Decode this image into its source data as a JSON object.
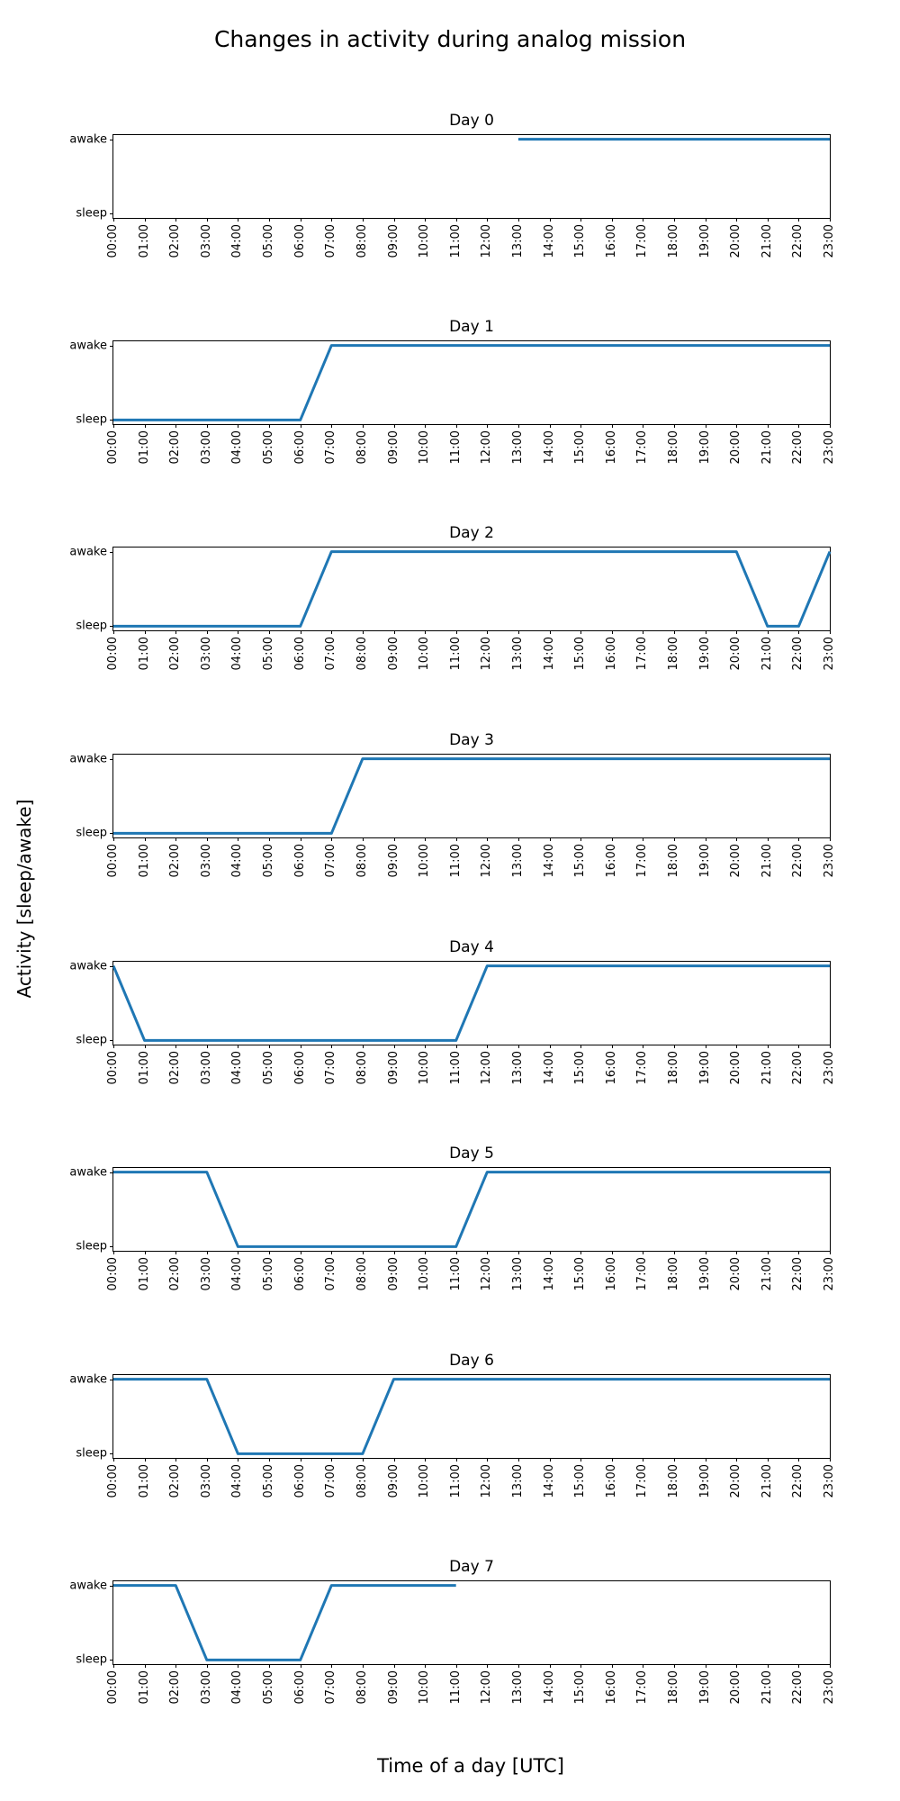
{
  "chart_data": {
    "type": "line",
    "title": "Changes in activity during analog mission",
    "xlabel": "Time of a day [UTC]",
    "ylabel": "Activity [sleep/awake]",
    "line_color": "#1f77b4",
    "x_axis": {
      "range_hours": [
        0,
        23
      ],
      "tick_labels": [
        "00:00",
        "01:00",
        "02:00",
        "03:00",
        "04:00",
        "05:00",
        "06:00",
        "07:00",
        "08:00",
        "09:00",
        "10:00",
        "11:00",
        "12:00",
        "13:00",
        "14:00",
        "15:00",
        "16:00",
        "17:00",
        "18:00",
        "19:00",
        "20:00",
        "21:00",
        "22:00",
        "23:00"
      ]
    },
    "y_axis": {
      "tick_labels": [
        "sleep",
        "awake"
      ],
      "tick_values": [
        0,
        1
      ]
    },
    "subplots": [
      {
        "title": "Day 0",
        "points_hour_state": [
          [
            13,
            1
          ],
          [
            23,
            1
          ]
        ]
      },
      {
        "title": "Day 1",
        "points_hour_state": [
          [
            0,
            0
          ],
          [
            6,
            0
          ],
          [
            7,
            1
          ],
          [
            23,
            1
          ]
        ]
      },
      {
        "title": "Day 2",
        "points_hour_state": [
          [
            0,
            0
          ],
          [
            6,
            0
          ],
          [
            7,
            1
          ],
          [
            20,
            1
          ],
          [
            21,
            0
          ],
          [
            22,
            0
          ],
          [
            23,
            1
          ]
        ]
      },
      {
        "title": "Day 3",
        "points_hour_state": [
          [
            0,
            0
          ],
          [
            7,
            0
          ],
          [
            8,
            1
          ],
          [
            23,
            1
          ]
        ]
      },
      {
        "title": "Day 4",
        "points_hour_state": [
          [
            0,
            1
          ],
          [
            1,
            0
          ],
          [
            11,
            0
          ],
          [
            12,
            1
          ],
          [
            23,
            1
          ]
        ]
      },
      {
        "title": "Day 5",
        "points_hour_state": [
          [
            0,
            1
          ],
          [
            3,
            1
          ],
          [
            4,
            0
          ],
          [
            11,
            0
          ],
          [
            12,
            1
          ],
          [
            23,
            1
          ]
        ]
      },
      {
        "title": "Day 6",
        "points_hour_state": [
          [
            0,
            1
          ],
          [
            3,
            1
          ],
          [
            4,
            0
          ],
          [
            8,
            0
          ],
          [
            9,
            1
          ],
          [
            23,
            1
          ]
        ]
      },
      {
        "title": "Day 7",
        "points_hour_state": [
          [
            0,
            1
          ],
          [
            2,
            1
          ],
          [
            3,
            0
          ],
          [
            6,
            0
          ],
          [
            7,
            1
          ],
          [
            11,
            1
          ]
        ]
      }
    ]
  }
}
